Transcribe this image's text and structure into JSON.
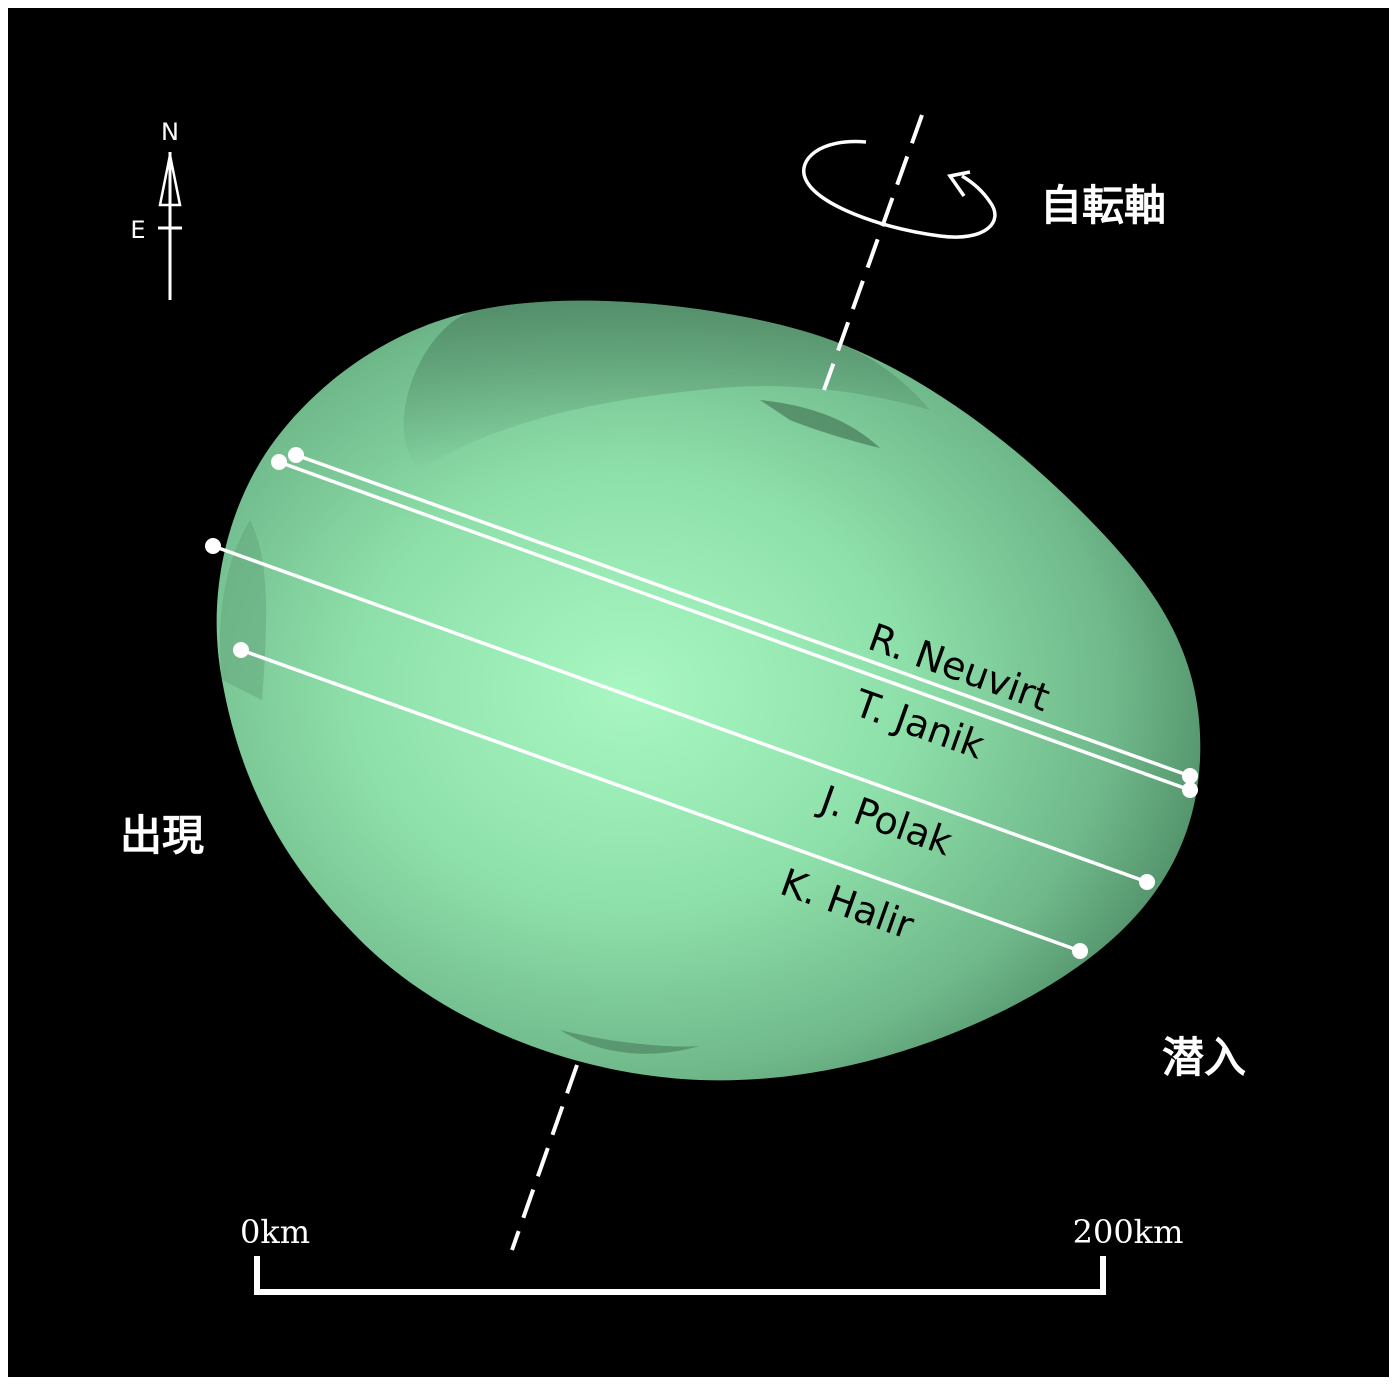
{
  "compass": {
    "north_label": "N",
    "east_label": "E"
  },
  "rotation_axis": {
    "label": "自転軸"
  },
  "events": {
    "reappearance_label": "出現",
    "disappearance_label": "潜入"
  },
  "chords": [
    {
      "observer": "R. Neuvirt"
    },
    {
      "observer": "T. Janik"
    },
    {
      "observer": "J. Polak"
    },
    {
      "observer": "K. Halir"
    }
  ],
  "scale_bar": {
    "start_label": "0km",
    "end_label": "200km"
  },
  "colors": {
    "background": "#000000",
    "asteroid_light": "#a6f5bf",
    "asteroid_mid": "#7fcf9c",
    "asteroid_dark": "#4f8f68",
    "lines": "#ffffff",
    "chord_text": "#000000"
  }
}
